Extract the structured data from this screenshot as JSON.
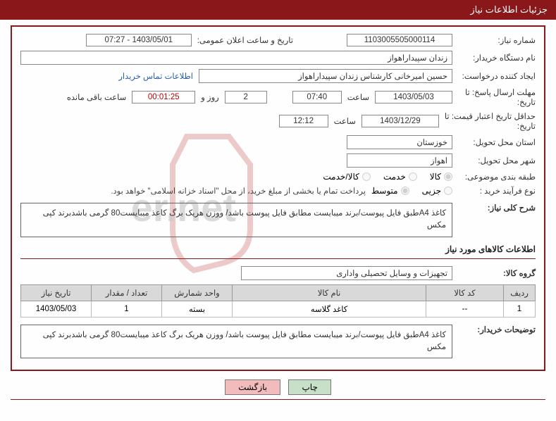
{
  "header": {
    "title": "جزئیات اطلاعات نیاز"
  },
  "fields": {
    "need_no_label": "شماره نیاز:",
    "need_no": "1103005505000114",
    "announce_label": "تاریخ و ساعت اعلان عمومی:",
    "announce_dt": "1403/05/01 - 07:27",
    "buyer_org_label": "نام دستگاه خریدار:",
    "buyer_org": "زندان سپیداراهواز",
    "requester_label": "ایجاد کننده درخواست:",
    "requester": "حسین امیرخانی کارشناس زندان سپیداراهواز",
    "buyer_contact_link": "اطلاعات تماس خریدار",
    "deadline_label_line1": "مهلت ارسال پاسخ: تا",
    "deadline_label_line2": "تاریخ:",
    "deadline_date": "1403/05/03",
    "time_label": "ساعت",
    "deadline_time": "07:40",
    "days_val": "2",
    "days_and_label": "روز و",
    "countdown": "00:01:25",
    "remaining_label": "ساعت باقی مانده",
    "validity_label_line1": "حداقل تاریخ اعتبار قیمت: تا",
    "validity_label_line2": "تاریخ:",
    "validity_date": "1403/12/29",
    "validity_time": "12:12",
    "province_label": "استان محل تحویل:",
    "province": "خوزستان",
    "city_label": "شهر محل تحویل:",
    "city": "اهواز",
    "category_label": "طبقه بندی موضوعی:",
    "radio_goods": "کالا",
    "radio_service": "خدمت",
    "radio_goods_service": "کالا/خدمت",
    "process_label": "نوع فرآیند خرید :",
    "radio_minor": "جزیی",
    "radio_medium": "متوسط",
    "payment_note": "پرداخت تمام یا بخشی از مبلغ خرید، از محل \"اسناد خزانه اسلامی\" خواهد بود.",
    "summary_label": "شرح کلی نیاز:",
    "summary_text": "کاغذ A4طبق فایل پیوست/برند میبایست مطابق فایل پیوست باشد/ ووزن هریک برگ کاعذ میبایست80 گرمی باشدبرند کپی مکس",
    "items_section": "اطلاعات کالاهای مورد نیاز",
    "group_label": "گروه کالا:",
    "group_value": "تجهیزات و وسایل تحصیلی واداری",
    "buyer_desc_label": "توضیحات خریدار:",
    "buyer_desc_text": "کاغذ A4طبق فایل پیوست/برند میبایست مطابق فایل پیوست باشد/ ووزن هریک برگ کاعذ میبایست80 گرمی باشدبرند کپی مکس"
  },
  "table": {
    "headers": {
      "row": "ردیف",
      "code": "کد کالا",
      "name": "نام کالا",
      "unit": "واحد شمارش",
      "qty": "تعداد / مقدار",
      "date": "تاریخ نیاز"
    },
    "rows": [
      {
        "row": "1",
        "code": "--",
        "name": "کاغد گلاسه",
        "unit": "بسته",
        "qty": "1",
        "date": "1403/05/03"
      }
    ]
  },
  "buttons": {
    "print": "چاپ",
    "back": "بازگشت"
  },
  "colors": {
    "primary": "#8a1719",
    "header_bg": "#d9d9d9",
    "link": "#2a5db0",
    "btn_print": "#c7e0c7",
    "btn_back": "#f2bcbc"
  }
}
